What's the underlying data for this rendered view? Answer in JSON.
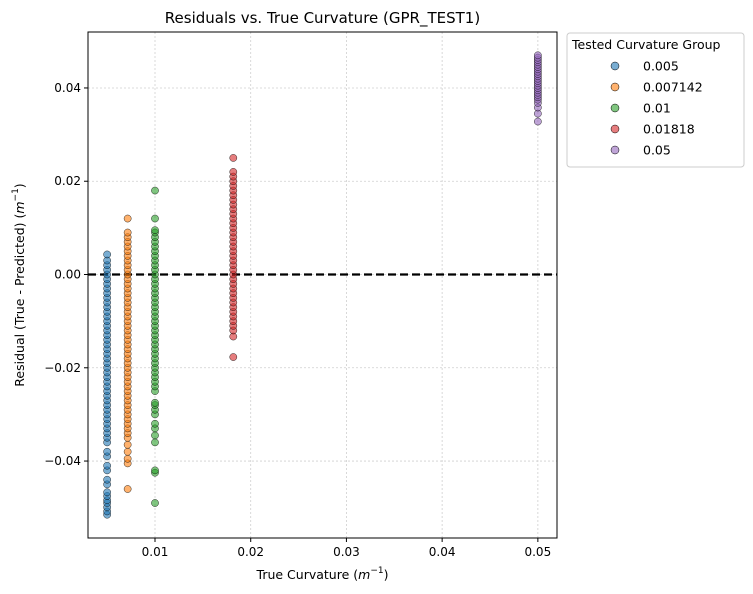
{
  "chart_data": {
    "type": "scatter",
    "title": "Residuals vs. True Curvature (GPR_TEST1)",
    "xlabel": "True Curvature (m^-1)",
    "xlabel_parts": {
      "main": "True Curvature (",
      "base": "m",
      "sup": "−1",
      "end": ")"
    },
    "ylabel": "Residual (True - Predicted) (m^-1)",
    "ylabel_parts": {
      "main": "Residual (True - Predicted) (",
      "base": "m",
      "sup": "−1",
      "end": ")"
    },
    "xlim": [
      0.003,
      0.052
    ],
    "ylim": [
      -0.0565,
      0.052
    ],
    "xticks": [
      0.01,
      0.02,
      0.03,
      0.04,
      0.05
    ],
    "xtick_labels": [
      "0.01",
      "0.02",
      "0.03",
      "0.04",
      "0.05"
    ],
    "yticks": [
      -0.04,
      -0.02,
      0.0,
      0.02,
      0.04
    ],
    "ytick_labels": [
      "−0.04",
      "−0.02",
      "0.00",
      "0.02",
      "0.04"
    ],
    "grid": true,
    "reference_line": {
      "y": 0.0,
      "style": "dashed",
      "color": "#000000"
    },
    "legend": {
      "title": "Tested Curvature Group",
      "placement": "outside-top-right"
    },
    "series": [
      {
        "name": "0.005",
        "x": 0.005,
        "color": "#1f77b4",
        "y": [
          -0.0515,
          -0.0508,
          -0.0499,
          -0.049,
          -0.0484,
          -0.0475,
          -0.0467,
          -0.045,
          -0.044,
          -0.042,
          -0.041,
          -0.039,
          -0.038,
          -0.036,
          -0.035,
          -0.034,
          -0.033,
          -0.032,
          -0.031,
          -0.03,
          -0.029,
          -0.028,
          -0.027,
          -0.026,
          -0.025,
          -0.024,
          -0.023,
          -0.022,
          -0.021,
          -0.02,
          -0.019,
          -0.018,
          -0.017,
          -0.016,
          -0.015,
          -0.014,
          -0.013,
          -0.012,
          -0.011,
          -0.01,
          -0.009,
          -0.008,
          -0.007,
          -0.006,
          -0.005,
          -0.004,
          -0.003,
          -0.002,
          -0.001,
          0.0,
          0.001,
          0.002,
          0.003,
          0.0043
        ]
      },
      {
        "name": "0.007142",
        "x": 0.007142,
        "color": "#ff7f0e",
        "y": [
          -0.046,
          -0.0405,
          -0.0395,
          -0.038,
          -0.0365,
          -0.035,
          -0.034,
          -0.033,
          -0.032,
          -0.031,
          -0.03,
          -0.029,
          -0.028,
          -0.027,
          -0.026,
          -0.025,
          -0.024,
          -0.023,
          -0.022,
          -0.021,
          -0.02,
          -0.019,
          -0.018,
          -0.017,
          -0.016,
          -0.015,
          -0.014,
          -0.013,
          -0.012,
          -0.011,
          -0.01,
          -0.009,
          -0.008,
          -0.007,
          -0.006,
          -0.005,
          -0.004,
          -0.003,
          -0.002,
          -0.001,
          0.0,
          0.001,
          0.002,
          0.003,
          0.004,
          0.005,
          0.006,
          0.007,
          0.008,
          0.009,
          0.012
        ]
      },
      {
        "name": "0.01",
        "x": 0.01,
        "color": "#2ca02c",
        "y": [
          -0.049,
          -0.0425,
          -0.042,
          -0.036,
          -0.0345,
          -0.033,
          -0.032,
          -0.03,
          -0.029,
          -0.028,
          -0.0275,
          -0.025,
          -0.024,
          -0.023,
          -0.022,
          -0.021,
          -0.02,
          -0.019,
          -0.018,
          -0.017,
          -0.016,
          -0.015,
          -0.014,
          -0.013,
          -0.012,
          -0.011,
          -0.01,
          -0.009,
          -0.008,
          -0.007,
          -0.006,
          -0.005,
          -0.004,
          -0.003,
          -0.002,
          -0.001,
          0.0,
          0.001,
          0.002,
          0.003,
          0.004,
          0.005,
          0.006,
          0.007,
          0.008,
          0.009,
          0.0095,
          0.012,
          0.018
        ]
      },
      {
        "name": "0.01818",
        "x": 0.01818,
        "color": "#d62728",
        "y": [
          -0.0177,
          -0.0133,
          -0.012,
          -0.011,
          -0.01,
          -0.009,
          -0.008,
          -0.007,
          -0.006,
          -0.005,
          -0.004,
          -0.003,
          -0.002,
          -0.001,
          0.0,
          0.001,
          0.002,
          0.003,
          0.004,
          0.005,
          0.006,
          0.007,
          0.008,
          0.009,
          0.01,
          0.011,
          0.012,
          0.013,
          0.014,
          0.015,
          0.016,
          0.017,
          0.018,
          0.019,
          0.02,
          0.021,
          0.022,
          0.025
        ]
      },
      {
        "name": "0.05",
        "x": 0.05,
        "color": "#9467bd",
        "y": [
          0.0328,
          0.0345,
          0.0358,
          0.0368,
          0.0375,
          0.038,
          0.0385,
          0.039,
          0.0395,
          0.04,
          0.0405,
          0.041,
          0.0415,
          0.042,
          0.0425,
          0.043,
          0.0435,
          0.044,
          0.0445,
          0.045,
          0.0455,
          0.046,
          0.0465,
          0.047
        ]
      }
    ]
  }
}
